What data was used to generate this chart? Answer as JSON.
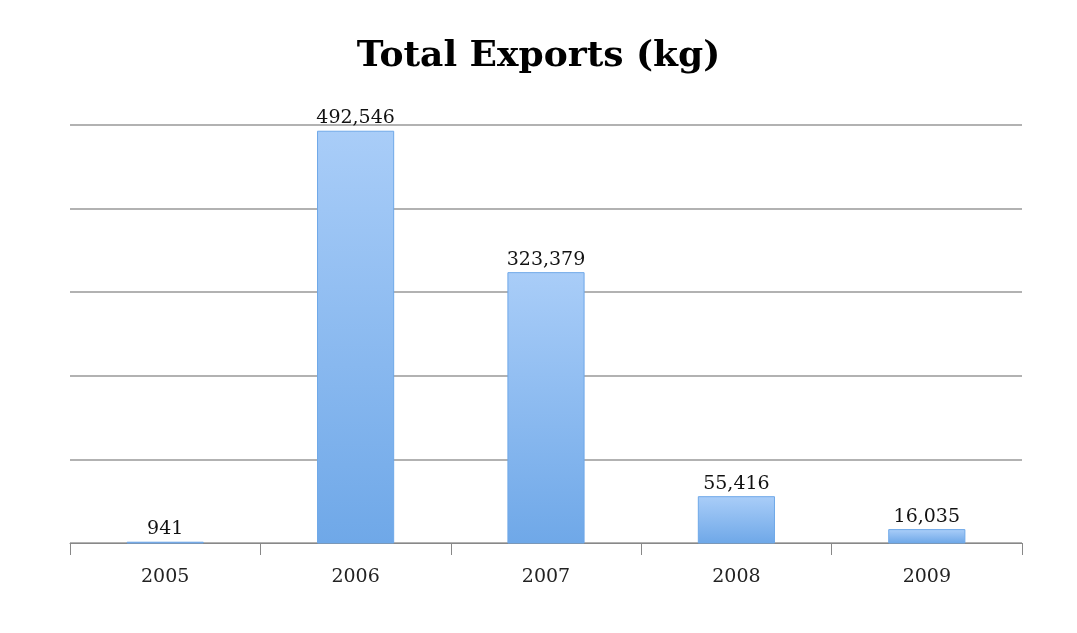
{
  "chart_data": {
    "type": "bar",
    "title": "Total Exports (kg)",
    "categories": [
      "2005",
      "2006",
      "2007",
      "2008",
      "2009"
    ],
    "values": [
      941,
      492546,
      323379,
      55416,
      16035
    ],
    "color": "#6fa8e8",
    "ylim": [
      0,
      500000
    ],
    "yticks": [
      {
        "value": 0,
        "label": null
      },
      {
        "value": 100000,
        "label": null
      },
      {
        "value": 200000,
        "label": null
      },
      {
        "value": 300000,
        "label": null
      },
      {
        "value": 400000,
        "label": null
      },
      {
        "value": 500000,
        "label": null
      }
    ],
    "grid": "y",
    "value_labels": [
      "941",
      "492,546",
      "323,379",
      "55,416",
      "16,035"
    ]
  }
}
